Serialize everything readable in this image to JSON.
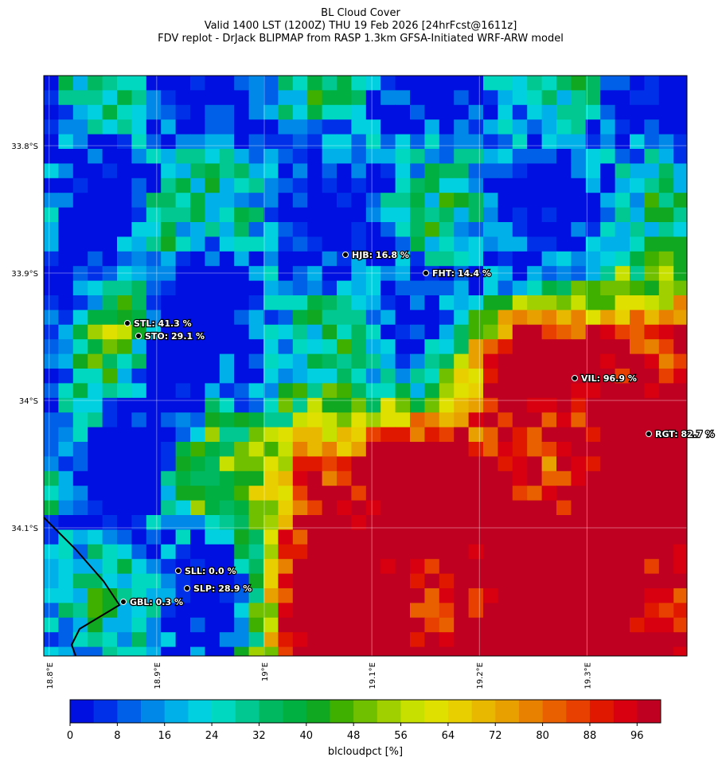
{
  "chart_data": {
    "type": "map",
    "title": "BL Cloud Cover",
    "subtitle": [
      "Valid 1400 LST (1200Z) THU 19 Feb 2026 [24hrFcst@1611z]",
      "FDV replot - DrJack BLIPMAP from RASP 1.3km GFSA-Initiated WRF-ARW model"
    ],
    "xlim": [
      18.795,
      19.393
    ],
    "ylim": [
      -34.2006,
      -33.745
    ],
    "xticks": [
      {
        "value": 18.8,
        "label": "18.8°E"
      },
      {
        "value": 18.9,
        "label": "18.9°E"
      },
      {
        "value": 19.0,
        "label": "19°E"
      },
      {
        "value": 19.1,
        "label": "19.1°E"
      },
      {
        "value": 19.2,
        "label": "19.2°E"
      },
      {
        "value": 19.3,
        "label": "19.3°E"
      }
    ],
    "yticks": [
      {
        "value": -33.8,
        "label": "33.8°S"
      },
      {
        "value": -33.9,
        "label": "33.9°S"
      },
      {
        "value": -34.0,
        "label": "34°S"
      },
      {
        "value": -34.1,
        "label": "34.1°S"
      }
    ],
    "grid": true,
    "stations": [
      "HJB: 16.8 %",
      "FHT: 14.4 %",
      "STL: 41.3 %",
      "STO: 29.1 %",
      "VIL: 96.9 %",
      "RGT: 82.7 %",
      "SLL: 0.0 %",
      "SLP: 28.9 %",
      "GBL: 0.3 %"
    ],
    "colorbar": {
      "label": "blcloudpct [%]",
      "lim": [
        0,
        100
      ],
      "ticks": [
        0,
        8,
        16,
        24,
        32,
        40,
        48,
        56,
        64,
        72,
        80,
        88,
        96
      ],
      "colors": [
        "#0010e0",
        "#0030e8",
        "#0060e8",
        "#0088e8",
        "#00b0e8",
        "#00d0e0",
        "#00d8c0",
        "#00c890",
        "#00b860",
        "#00b040",
        "#10a820",
        "#40b000",
        "#70c000",
        "#a0d000",
        "#c8e000",
        "#e0e000",
        "#e8d000",
        "#e8b800",
        "#e8a000",
        "#e88000",
        "#e86000",
        "#e84000",
        "#e01800",
        "#d80010",
        "#c00020"
      ]
    }
  }
}
